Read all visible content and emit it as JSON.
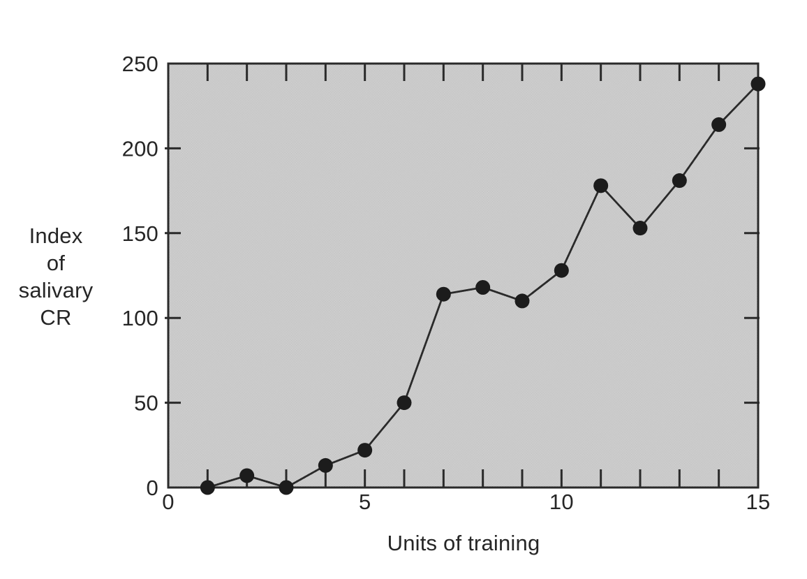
{
  "figure": {
    "background_color": "#ffffff",
    "text_color": "#262626"
  },
  "chart_data": {
    "type": "line",
    "title": "",
    "xlabel": "Units of training",
    "ylabel": "Index of salivary CR",
    "ylabel_lines": [
      "Index",
      "of",
      "salivary",
      "CR"
    ],
    "x": [
      1,
      2,
      3,
      4,
      5,
      6,
      7,
      8,
      9,
      10,
      11,
      12,
      13,
      14,
      15
    ],
    "values": [
      0,
      7,
      0,
      13,
      22,
      50,
      114,
      118,
      110,
      128,
      178,
      153,
      181,
      214,
      238
    ],
    "xlim": [
      0,
      15
    ],
    "ylim": [
      0,
      250
    ],
    "x_tick_labels": [
      0,
      5,
      10,
      15
    ],
    "y_tick_labels": [
      0,
      50,
      100,
      150,
      200,
      250
    ],
    "minor_tick_step_x": 1,
    "side_tick_values_y": [
      50,
      100,
      150,
      200
    ],
    "grid": false,
    "legend": null,
    "marker": "filled-circle",
    "plot_background": "halftone-gray",
    "colors": {
      "line": "#2a2a2a",
      "marker": "#1c1c1c",
      "frame": "#2a2a2a",
      "tick": "#2a2a2a",
      "halftone_dark": "#a3a3a3",
      "halftone_light": "#f1f1f1"
    }
  }
}
